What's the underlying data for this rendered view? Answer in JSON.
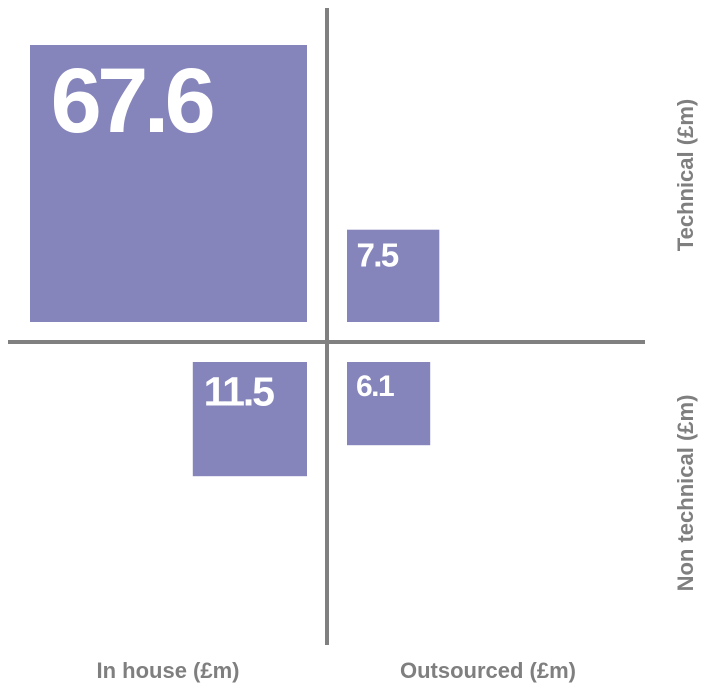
{
  "chart_data": {
    "type": "proportional-area quadrant",
    "row_labels": [
      "Technical (£m)",
      "Non technical (£m)"
    ],
    "column_labels": [
      "In house (£m)",
      "Outsourced (£m)"
    ],
    "cells": [
      {
        "row": "Technical (£m)",
        "column": "In house (£m)",
        "value": 67.6,
        "label": "67.6"
      },
      {
        "row": "Technical (£m)",
        "column": "Outsourced (£m)",
        "value": 7.5,
        "label": "7.5"
      },
      {
        "row": "Non technical (£m)",
        "column": "In house (£m)",
        "value": 11.5,
        "label": "11.5"
      },
      {
        "row": "Non technical (£m)",
        "column": "Outsourced (£m)",
        "value": 6.1,
        "label": "6.1"
      }
    ],
    "colors": {
      "box": "#8585bb",
      "axis": "#808080",
      "value_text": "#ffffff",
      "label_text": "#7f7f7f"
    }
  }
}
